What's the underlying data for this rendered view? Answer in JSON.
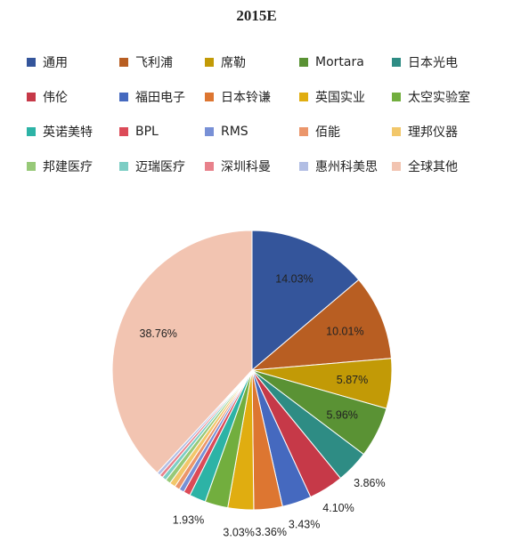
{
  "chart_data": {
    "type": "pie",
    "title": "2015E",
    "legend_position": "top",
    "slices": [
      {
        "name": "通用",
        "value": 14.03,
        "color": "#34559b"
      },
      {
        "name": "飞利浦",
        "value": 10.01,
        "color": "#b85e22"
      },
      {
        "name": "席勒",
        "value": 5.87,
        "color": "#c29a06"
      },
      {
        "name": "Mortara",
        "value": 5.96,
        "color": "#5a9234"
      },
      {
        "name": "日本光电",
        "value": 3.86,
        "color": "#2e8c84"
      },
      {
        "name": "伟伦",
        "value": 4.1,
        "color": "#c63948"
      },
      {
        "name": "福田电子",
        "value": 3.43,
        "color": "#4569bf"
      },
      {
        "name": "日本铃谦",
        "value": 3.36,
        "color": "#dd7631"
      },
      {
        "name": "英国实业",
        "value": 3.03,
        "color": "#e0ad10"
      },
      {
        "name": "太空实验室",
        "value": 2.7,
        "color": "#72ae3e"
      },
      {
        "name": "英诺美特",
        "value": 1.93,
        "color": "#2db3a6"
      },
      {
        "name": "BPL",
        "value": 0.8,
        "color": "#dc4b58"
      },
      {
        "name": "RMS",
        "value": 0.6,
        "color": "#7890d6"
      },
      {
        "name": "佰能",
        "value": 0.6,
        "color": "#eb966b"
      },
      {
        "name": "理邦仪器",
        "value": 0.7,
        "color": "#f2c76a"
      },
      {
        "name": "邦建医疗",
        "value": 0.6,
        "color": "#97c978"
      },
      {
        "name": "迈瑞医疗",
        "value": 0.5,
        "color": "#7ccdc4"
      },
      {
        "name": "深圳科曼",
        "value": 0.4,
        "color": "#e8818b"
      },
      {
        "name": "惠州科美思",
        "value": 0.4,
        "color": "#b2bee4"
      },
      {
        "name": "全球其他",
        "value": 38.76,
        "color": "#f2c4b1"
      }
    ],
    "data_labels": [
      {
        "slice": "通用",
        "text": "14.03%"
      },
      {
        "slice": "飞利浦",
        "text": "10.01%"
      },
      {
        "slice": "席勒",
        "text": "5.87%"
      },
      {
        "slice": "Mortara",
        "text": "5.96%"
      },
      {
        "slice": "日本光电",
        "text": "3.86%"
      },
      {
        "slice": "伟伦",
        "text": "4.10%"
      },
      {
        "slice": "福田电子",
        "text": "3.43%"
      },
      {
        "slice": "日本铃谦",
        "text": "3.36%"
      },
      {
        "slice": "英国实业",
        "text": "3.03%"
      },
      {
        "slice": "英诺美特",
        "text": "1.93%"
      },
      {
        "slice": "全球其他",
        "text": "38.76%"
      }
    ]
  }
}
